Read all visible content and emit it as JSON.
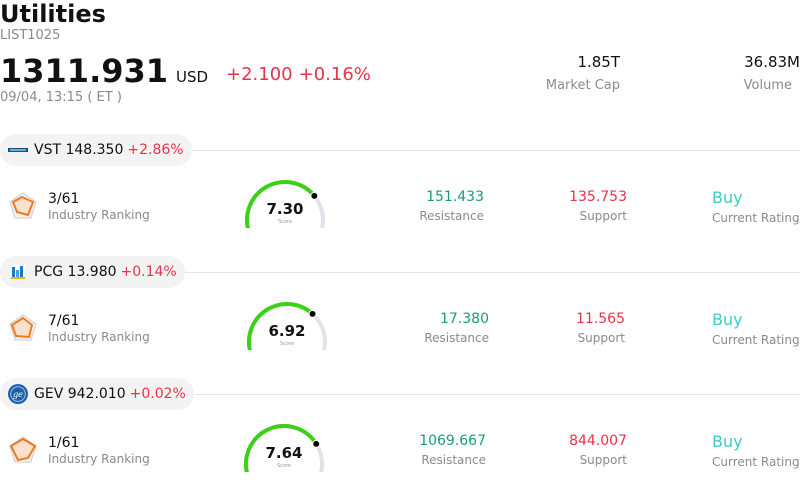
{
  "header": {
    "title": "Utilities",
    "code": "LIST1025",
    "price": "1311.931",
    "currency": "USD",
    "change_abs": "+2.100",
    "change_pct": "+0.16%",
    "time": "09/04, 13:15  ( ET )",
    "market_cap_value": "1.85T",
    "market_cap_label": "Market Cap",
    "volume_value": "36.83M",
    "volume_label": "Volume"
  },
  "stocks": [
    {
      "ticker": "VST",
      "price": "148.350",
      "change_pct": "+2.86%",
      "rank": "3/61",
      "rank_label": "Industry Ranking",
      "score": "7.30",
      "score_label": "Score",
      "score_fraction": 0.73,
      "resistance": "151.433",
      "resistance_label": "Resistance",
      "support": "135.753",
      "support_label": "Support",
      "rating": "Buy",
      "rating_label": "Current Rating"
    },
    {
      "ticker": "PCG",
      "price": "13.980",
      "change_pct": "+0.14%",
      "rank": "7/61",
      "rank_label": "Industry Ranking",
      "score": "6.92",
      "score_label": "Score",
      "score_fraction": 0.692,
      "resistance": "17.380",
      "resistance_label": "Resistance",
      "support": "11.565",
      "support_label": "Support",
      "rating": "Buy",
      "rating_label": "Current Rating"
    },
    {
      "ticker": "GEV",
      "price": "942.010",
      "change_pct": "+0.02%",
      "rank": "1/61",
      "rank_label": "Industry Ranking",
      "score": "7.64",
      "score_label": "Score",
      "score_fraction": 0.764,
      "resistance": "1069.667",
      "resistance_label": "Resistance",
      "support": "844.007",
      "support_label": "Support",
      "rating": "Buy",
      "rating_label": "Current Rating"
    }
  ],
  "colors": {
    "up": "#e8334a",
    "resistance": "#1a9b7c",
    "rating": "#3ec9c7",
    "gauge": "#3cd019"
  },
  "icons": {
    "VST": "vistra-logo-icon",
    "PCG": "pge-logo-icon",
    "GEV": "ge-logo-icon",
    "rank": "radar-chart-icon"
  }
}
